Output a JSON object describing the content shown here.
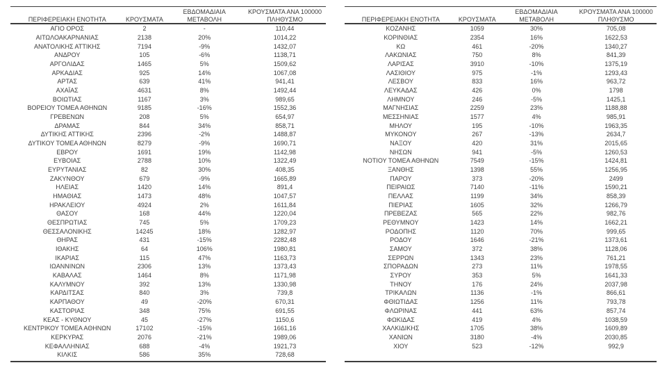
{
  "colors": {
    "text": "#3d3d3d",
    "border": "#3c3c3c",
    "background": "#ffffff"
  },
  "header": {
    "col_region": "ΠΕΡΙΦΕΡΕΙΑΚΗ ΕΝΟΤΗΤΑ",
    "col_cases": "ΚΡΟΥΣΜΑΤΑ",
    "col_change_line1": "ΕΒΔΟΜΑΔΙΑΙΑ",
    "col_change_line2": "ΜΕΤΑΒΟΛΗ",
    "col_per100k_line1": "ΚΡΟΥΣΜΑΤΑ ΑΝΑ 100000",
    "col_per100k_line2": "ΠΛΗΘΥΣΜΟ"
  },
  "tables": [
    {
      "rows": [
        [
          "ΑΓΙΟ ΟΡΟΣ",
          "2",
          "-",
          "110,44"
        ],
        [
          "ΑΙΤΩΛΟΑΚΑΡΝΑΝΙΑΣ",
          "2138",
          "20%",
          "1014,22"
        ],
        [
          "ΑΝΑΤΟΛΙΚΗΣ ΑΤΤΙΚΗΣ",
          "7194",
          "-9%",
          "1432,07"
        ],
        [
          "ΑΝΔΡΟΥ",
          "105",
          "-6%",
          "1138,71"
        ],
        [
          "ΑΡΓΟΛΙΔΑΣ",
          "1465",
          "5%",
          "1509,62"
        ],
        [
          "ΑΡΚΑΔΙΑΣ",
          "925",
          "14%",
          "1067,08"
        ],
        [
          "ΑΡΤΑΣ",
          "639",
          "41%",
          "941,41"
        ],
        [
          "ΑΧΑΪΑΣ",
          "4631",
          "8%",
          "1492,44"
        ],
        [
          "ΒΟΙΩΤΙΑΣ",
          "1167",
          "3%",
          "989,65"
        ],
        [
          "ΒΟΡΕΙΟΥ ΤΟΜΕΑ ΑΘΗΝΩΝ",
          "9185",
          "-16%",
          "1552,36"
        ],
        [
          "ΓΡΕΒΕΝΩΝ",
          "208",
          "5%",
          "654,97"
        ],
        [
          "ΔΡΑΜΑΣ",
          "844",
          "34%",
          "858,71"
        ],
        [
          "ΔΥΤΙΚΗΣ ΑΤΤΙΚΗΣ",
          "2396",
          "-2%",
          "1488,87"
        ],
        [
          "ΔΥΤΙΚΟΥ ΤΟΜΕΑ ΑΘΗΝΩΝ",
          "8279",
          "-9%",
          "1690,71"
        ],
        [
          "ΕΒΡΟΥ",
          "1691",
          "19%",
          "1142,98"
        ],
        [
          "ΕΥΒΟΙΑΣ",
          "2788",
          "10%",
          "1322,49"
        ],
        [
          "ΕΥΡΥΤΑΝΙΑΣ",
          "82",
          "30%",
          "408,35"
        ],
        [
          "ΖΑΚΥΝΘΟΥ",
          "679",
          "-9%",
          "1665,89"
        ],
        [
          "ΗΛΕΙΑΣ",
          "1420",
          "14%",
          "891,4"
        ],
        [
          "ΗΜΑΘΙΑΣ",
          "1473",
          "48%",
          "1047,57"
        ],
        [
          "ΗΡΑΚΛΕΙΟΥ",
          "4924",
          "2%",
          "1611,84"
        ],
        [
          "ΘΑΣΟΥ",
          "168",
          "44%",
          "1220,04"
        ],
        [
          "ΘΕΣΠΡΩΤΙΑΣ",
          "745",
          "5%",
          "1709,23"
        ],
        [
          "ΘΕΣΣΑΛΟΝΙΚΗΣ",
          "14245",
          "18%",
          "1282,97"
        ],
        [
          "ΘΗΡΑΣ",
          "431",
          "-15%",
          "2282,48"
        ],
        [
          "ΙΘΑΚΗΣ",
          "64",
          "106%",
          "1980,81"
        ],
        [
          "ΙΚΑΡΙΑΣ",
          "115",
          "47%",
          "1163,73"
        ],
        [
          "ΙΩΑΝΝΙΝΩΝ",
          "2306",
          "13%",
          "1373,43"
        ],
        [
          "ΚΑΒΑΛΑΣ",
          "1464",
          "8%",
          "1171,98"
        ],
        [
          "ΚΑΛΥΜΝΟΥ",
          "392",
          "13%",
          "1330,98"
        ],
        [
          "ΚΑΡΔΙΤΣΑΣ",
          "840",
          "3%",
          "739,8"
        ],
        [
          "ΚΑΡΠΑΘΟΥ",
          "49",
          "-20%",
          "670,31"
        ],
        [
          "ΚΑΣΤΟΡΙΑΣ",
          "348",
          "75%",
          "691,55"
        ],
        [
          "ΚΕΑΣ - ΚΥΘΝΟΥ",
          "45",
          "-27%",
          "1150,6"
        ],
        [
          "ΚΕΝΤΡΙΚΟΥ ΤΟΜΕΑ ΑΘΗΝΩΝ",
          "17102",
          "-15%",
          "1661,16"
        ],
        [
          "ΚΕΡΚΥΡΑΣ",
          "2076",
          "-21%",
          "1989,06"
        ],
        [
          "ΚΕΦΑΛΛΗΝΙΑΣ",
          "688",
          "-4%",
          "1921,73"
        ],
        [
          "ΚΙΛΚΙΣ",
          "586",
          "35%",
          "728,68"
        ]
      ]
    },
    {
      "rows": [
        [
          "ΚΟΖΑΝΗΣ",
          "1059",
          "30%",
          "705,08"
        ],
        [
          "ΚΟΡΙΝΘΙΑΣ",
          "2354",
          "16%",
          "1622,53"
        ],
        [
          "ΚΩ",
          "461",
          "-20%",
          "1340,27"
        ],
        [
          "ΛΑΚΩΝΙΑΣ",
          "750",
          "8%",
          "841,39"
        ],
        [
          "ΛΑΡΙΣΑΣ",
          "3910",
          "-10%",
          "1375,19"
        ],
        [
          "ΛΑΣΙΘΙΟΥ",
          "975",
          "-1%",
          "1293,43"
        ],
        [
          "ΛΕΣΒΟΥ",
          "833",
          "16%",
          "963,72"
        ],
        [
          "ΛΕΥΚΑΔΑΣ",
          "426",
          "0%",
          "1798"
        ],
        [
          "ΛΗΜΝΟΥ",
          "246",
          "-5%",
          "1425,1"
        ],
        [
          "ΜΑΓΝΗΣΙΑΣ",
          "2259",
          "23%",
          "1188,88"
        ],
        [
          "ΜΕΣΣΗΝΙΑΣ",
          "1577",
          "4%",
          "985,91"
        ],
        [
          "ΜΗΛΟΥ",
          "195",
          "-10%",
          "1963,35"
        ],
        [
          "ΜΥΚΟΝΟΥ",
          "267",
          "-13%",
          "2634,7"
        ],
        [
          "ΝΑΞΟΥ",
          "420",
          "31%",
          "2015,65"
        ],
        [
          "ΝΗΣΩΝ",
          "941",
          "-5%",
          "1260,53"
        ],
        [
          "ΝΟΤΙΟΥ ΤΟΜΕΑ ΑΘΗΝΩΝ",
          "7549",
          "-15%",
          "1424,81"
        ],
        [
          "ΞΑΝΘΗΣ",
          "1398",
          "55%",
          "1256,95"
        ],
        [
          "ΠΑΡΟΥ",
          "373",
          "-20%",
          "2499"
        ],
        [
          "ΠΕΙΡΑΙΩΣ",
          "7140",
          "-11%",
          "1590,21"
        ],
        [
          "ΠΕΛΛΑΣ",
          "1199",
          "34%",
          "858,39"
        ],
        [
          "ΠΙΕΡΙΑΣ",
          "1605",
          "32%",
          "1266,79"
        ],
        [
          "ΠΡΕΒΕΖΑΣ",
          "565",
          "22%",
          "982,76"
        ],
        [
          "ΡΕΘΥΜΝΟΥ",
          "1423",
          "14%",
          "1662,21"
        ],
        [
          "ΡΟΔΟΠΗΣ",
          "1120",
          "70%",
          "999,65"
        ],
        [
          "ΡΟΔΟΥ",
          "1646",
          "-21%",
          "1373,61"
        ],
        [
          "ΣΑΜΟΥ",
          "372",
          "38%",
          "1128,06"
        ],
        [
          "ΣΕΡΡΩΝ",
          "1343",
          "23%",
          "761,21"
        ],
        [
          "ΣΠΟΡΑΔΩΝ",
          "273",
          "11%",
          "1978,55"
        ],
        [
          "ΣΥΡΟΥ",
          "353",
          "5%",
          "1641,33"
        ],
        [
          "ΤΗΝΟΥ",
          "176",
          "24%",
          "2037,98"
        ],
        [
          "ΤΡΙΚΑΛΩΝ",
          "1136",
          "-1%",
          "866,61"
        ],
        [
          "ΦΘΙΩΤΙΔΑΣ",
          "1256",
          "11%",
          "793,78"
        ],
        [
          "ΦΛΩΡΙΝΑΣ",
          "441",
          "63%",
          "857,74"
        ],
        [
          "ΦΩΚΙΔΑΣ",
          "419",
          "4%",
          "1038,59"
        ],
        [
          "ΧΑΛΚΙΔΙΚΗΣ",
          "1705",
          "38%",
          "1609,89"
        ],
        [
          "ΧΑΝΙΩΝ",
          "3180",
          "-4%",
          "2030,85"
        ],
        [
          "ΧΙΟΥ",
          "523",
          "-12%",
          "992,9"
        ]
      ]
    }
  ]
}
